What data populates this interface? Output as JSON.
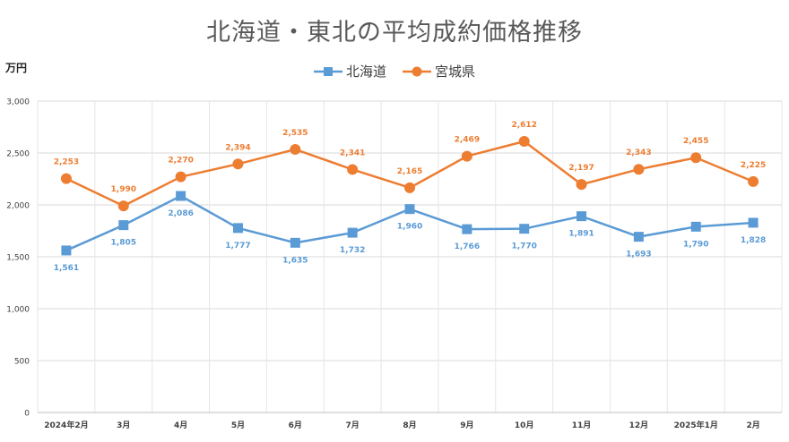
{
  "chart_data": {
    "type": "line",
    "title": "北海道・東北の平均成約価格推移",
    "ylabel": "万円",
    "xlabel": "",
    "categories": [
      "2024年2月",
      "3月",
      "4月",
      "5月",
      "6月",
      "7月",
      "8月",
      "9月",
      "10月",
      "11月",
      "12月",
      "2025年1月",
      "2月"
    ],
    "ylim": [
      0,
      3000
    ],
    "yticks": [
      "0",
      "500",
      "1,000",
      "1,500",
      "2,000",
      "2,500",
      "3,000"
    ],
    "ytick_values": [
      0,
      500,
      1000,
      1500,
      2000,
      2500,
      3000
    ],
    "grid": true,
    "legend_position": "top-center",
    "series": [
      {
        "name": "北海道",
        "color": "#5b9bd5",
        "marker": "square",
        "values": [
          1561,
          1805,
          2086,
          1777,
          1635,
          1732,
          1960,
          1766,
          1770,
          1891,
          1693,
          1790,
          1828
        ],
        "labels": [
          "1,561",
          "1,805",
          "2,086",
          "1,777",
          "1,635",
          "1,732",
          "1,960",
          "1,766",
          "1,770",
          "1,891",
          "1,693",
          "1,790",
          "1,828"
        ]
      },
      {
        "name": "宮城県",
        "color": "#ed7d31",
        "marker": "circle",
        "values": [
          2253,
          1990,
          2270,
          2394,
          2535,
          2341,
          2165,
          2469,
          2612,
          2197,
          2343,
          2455,
          2225
        ],
        "labels": [
          "2,253",
          "1,990",
          "2,270",
          "2,394",
          "2,535",
          "2,341",
          "2,165",
          "2,469",
          "2,612",
          "2,197",
          "2,343",
          "2,455",
          "2,225"
        ]
      }
    ]
  }
}
